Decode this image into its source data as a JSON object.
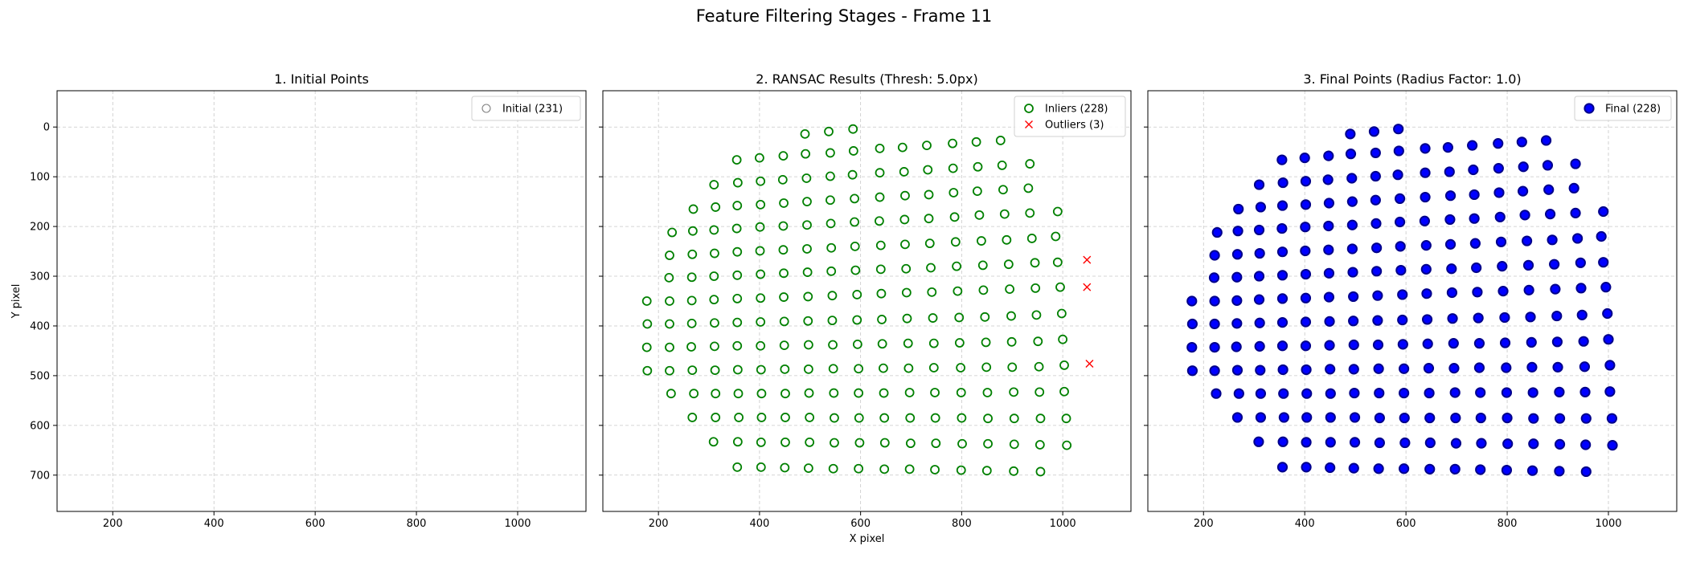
{
  "figure": {
    "title": "Feature Filtering Stages - Frame 11"
  },
  "chart_data": [
    {
      "type": "scatter",
      "title": "1. Initial Points",
      "xlabel": "",
      "ylabel": "Y pixel",
      "xlim": [
        90,
        1135
      ],
      "ylim": [
        773,
        -73
      ],
      "y_inverted": true,
      "xticks": [
        200,
        400,
        600,
        800,
        1000
      ],
      "yticks": [
        0,
        100,
        200,
        300,
        400,
        500,
        600,
        700
      ],
      "grid": true,
      "legend_position": "upper right",
      "series": [
        {
          "name": "Initial (231)",
          "marker": "hollow-circle",
          "color": "#808080",
          "group": "all"
        }
      ]
    },
    {
      "type": "scatter",
      "title": "2. RANSAC Results (Thresh: 5.0px)",
      "xlabel": "X pixel",
      "ylabel": "",
      "xlim": [
        90,
        1135
      ],
      "ylim": [
        773,
        -73
      ],
      "y_inverted": true,
      "xticks": [
        200,
        400,
        600,
        800,
        1000
      ],
      "yticks": [
        0,
        100,
        200,
        300,
        400,
        500,
        600,
        700
      ],
      "grid": true,
      "legend_position": "upper right",
      "series": [
        {
          "name": "Inliers (228)",
          "marker": "hollow-circle",
          "color": "#008000",
          "group": "inliers"
        },
        {
          "name": "Outliers (3)",
          "marker": "x",
          "color": "#ff0000",
          "group": "outliers"
        }
      ]
    },
    {
      "type": "scatter",
      "title": "3. Final Points (Radius Factor: 1.0)",
      "xlabel": "",
      "ylabel": "",
      "xlim": [
        90,
        1135
      ],
      "ylim": [
        773,
        -73
      ],
      "y_inverted": true,
      "xticks": [
        200,
        400,
        600,
        800,
        1000
      ],
      "yticks": [
        0,
        100,
        200,
        300,
        400,
        500,
        600,
        700
      ],
      "grid": true,
      "legend_position": "upper right",
      "series": [
        {
          "name": "Final (228)",
          "marker": "filled-circle",
          "color": "#0000ff",
          "edge": "#00008b",
          "group": "inliers"
        }
      ]
    }
  ],
  "points": {
    "inliers": [
      [
        490,
        14
      ],
      [
        537,
        9
      ],
      [
        585,
        4
      ],
      [
        355,
        66
      ],
      [
        400,
        62
      ],
      [
        447,
        58
      ],
      [
        491,
        54
      ],
      [
        540,
        52
      ],
      [
        586,
        48
      ],
      [
        638,
        43
      ],
      [
        683,
        41
      ],
      [
        731,
        37
      ],
      [
        782,
        33
      ],
      [
        829,
        30
      ],
      [
        877,
        27
      ],
      [
        310,
        116
      ],
      [
        357,
        112
      ],
      [
        402,
        109
      ],
      [
        446,
        106
      ],
      [
        493,
        103
      ],
      [
        540,
        99
      ],
      [
        584,
        96
      ],
      [
        638,
        92
      ],
      [
        686,
        90
      ],
      [
        733,
        86
      ],
      [
        783,
        83
      ],
      [
        832,
        80
      ],
      [
        880,
        77
      ],
      [
        935,
        74
      ],
      [
        269,
        165
      ],
      [
        313,
        161
      ],
      [
        356,
        158
      ],
      [
        402,
        156
      ],
      [
        448,
        153
      ],
      [
        494,
        150
      ],
      [
        540,
        147
      ],
      [
        588,
        144
      ],
      [
        638,
        141
      ],
      [
        688,
        138
      ],
      [
        735,
        136
      ],
      [
        784,
        132
      ],
      [
        831,
        129
      ],
      [
        882,
        126
      ],
      [
        932,
        123
      ],
      [
        990,
        170
      ],
      [
        227,
        212
      ],
      [
        268,
        209
      ],
      [
        310,
        207
      ],
      [
        355,
        204
      ],
      [
        401,
        201
      ],
      [
        447,
        199
      ],
      [
        494,
        197
      ],
      [
        541,
        194
      ],
      [
        588,
        191
      ],
      [
        637,
        189
      ],
      [
        687,
        186
      ],
      [
        735,
        184
      ],
      [
        786,
        181
      ],
      [
        835,
        177
      ],
      [
        885,
        175
      ],
      [
        935,
        173
      ],
      [
        986,
        220
      ],
      [
        222,
        258
      ],
      [
        267,
        256
      ],
      [
        311,
        254
      ],
      [
        356,
        251
      ],
      [
        401,
        249
      ],
      [
        447,
        247
      ],
      [
        494,
        245
      ],
      [
        542,
        243
      ],
      [
        589,
        240
      ],
      [
        640,
        238
      ],
      [
        688,
        236
      ],
      [
        737,
        234
      ],
      [
        788,
        231
      ],
      [
        839,
        229
      ],
      [
        889,
        227
      ],
      [
        939,
        224
      ],
      [
        990,
        272
      ],
      [
        221,
        303
      ],
      [
        266,
        302
      ],
      [
        310,
        300
      ],
      [
        356,
        298
      ],
      [
        402,
        296
      ],
      [
        448,
        294
      ],
      [
        495,
        292
      ],
      [
        542,
        290
      ],
      [
        590,
        288
      ],
      [
        640,
        286
      ],
      [
        690,
        285
      ],
      [
        739,
        283
      ],
      [
        790,
        280
      ],
      [
        842,
        278
      ],
      [
        893,
        276
      ],
      [
        945,
        273
      ],
      [
        177,
        350
      ],
      [
        222,
        350
      ],
      [
        266,
        349
      ],
      [
        310,
        347
      ],
      [
        356,
        345
      ],
      [
        402,
        344
      ],
      [
        448,
        342
      ],
      [
        496,
        341
      ],
      [
        544,
        339
      ],
      [
        593,
        337
      ],
      [
        641,
        335
      ],
      [
        691,
        333
      ],
      [
        741,
        332
      ],
      [
        792,
        330
      ],
      [
        843,
        328
      ],
      [
        895,
        326
      ],
      [
        946,
        324
      ],
      [
        995,
        322
      ],
      [
        178,
        396
      ],
      [
        222,
        396
      ],
      [
        266,
        395
      ],
      [
        311,
        394
      ],
      [
        356,
        393
      ],
      [
        402,
        392
      ],
      [
        449,
        391
      ],
      [
        496,
        390
      ],
      [
        544,
        389
      ],
      [
        593,
        388
      ],
      [
        642,
        387
      ],
      [
        692,
        385
      ],
      [
        743,
        384
      ],
      [
        795,
        383
      ],
      [
        846,
        382
      ],
      [
        898,
        380
      ],
      [
        948,
        378
      ],
      [
        998,
        375
      ],
      [
        177,
        443
      ],
      [
        222,
        443
      ],
      [
        265,
        442
      ],
      [
        311,
        441
      ],
      [
        356,
        440
      ],
      [
        402,
        440
      ],
      [
        449,
        439
      ],
      [
        497,
        438
      ],
      [
        545,
        438
      ],
      [
        594,
        437
      ],
      [
        643,
        436
      ],
      [
        694,
        435
      ],
      [
        745,
        435
      ],
      [
        796,
        434
      ],
      [
        848,
        433
      ],
      [
        899,
        432
      ],
      [
        951,
        431
      ],
      [
        1000,
        427
      ],
      [
        178,
        490
      ],
      [
        222,
        490
      ],
      [
        267,
        489
      ],
      [
        312,
        489
      ],
      [
        357,
        488
      ],
      [
        403,
        488
      ],
      [
        450,
        487
      ],
      [
        497,
        487
      ],
      [
        546,
        486
      ],
      [
        596,
        486
      ],
      [
        645,
        485
      ],
      [
        695,
        485
      ],
      [
        745,
        484
      ],
      [
        798,
        484
      ],
      [
        849,
        483
      ],
      [
        900,
        483
      ],
      [
        953,
        482
      ],
      [
        1003,
        479
      ],
      [
        225,
        536
      ],
      [
        270,
        536
      ],
      [
        313,
        536
      ],
      [
        358,
        536
      ],
      [
        404,
        536
      ],
      [
        451,
        536
      ],
      [
        498,
        535
      ],
      [
        547,
        535
      ],
      [
        596,
        535
      ],
      [
        646,
        535
      ],
      [
        697,
        534
      ],
      [
        747,
        534
      ],
      [
        799,
        534
      ],
      [
        851,
        534
      ],
      [
        903,
        533
      ],
      [
        954,
        533
      ],
      [
        1003,
        532
      ],
      [
        267,
        584
      ],
      [
        313,
        584
      ],
      [
        359,
        584
      ],
      [
        404,
        584
      ],
      [
        451,
        584
      ],
      [
        499,
        584
      ],
      [
        548,
        585
      ],
      [
        597,
        585
      ],
      [
        647,
        585
      ],
      [
        698,
        585
      ],
      [
        748,
        585
      ],
      [
        800,
        585
      ],
      [
        852,
        586
      ],
      [
        904,
        586
      ],
      [
        956,
        586
      ],
      [
        1007,
        586
      ],
      [
        309,
        633
      ],
      [
        357,
        633
      ],
      [
        403,
        634
      ],
      [
        451,
        634
      ],
      [
        499,
        634
      ],
      [
        548,
        635
      ],
      [
        598,
        635
      ],
      [
        648,
        635
      ],
      [
        699,
        636
      ],
      [
        749,
        636
      ],
      [
        801,
        637
      ],
      [
        852,
        637
      ],
      [
        904,
        638
      ],
      [
        955,
        639
      ],
      [
        1008,
        640
      ],
      [
        356,
        684
      ],
      [
        403,
        684
      ],
      [
        450,
        685
      ],
      [
        497,
        686
      ],
      [
        546,
        687
      ],
      [
        596,
        687
      ],
      [
        647,
        688
      ],
      [
        697,
        688
      ],
      [
        747,
        689
      ],
      [
        799,
        690
      ],
      [
        850,
        691
      ],
      [
        903,
        692
      ],
      [
        956,
        693
      ]
    ],
    "outliers": [
      [
        1048,
        267
      ],
      [
        1048,
        322
      ],
      [
        1053,
        476
      ]
    ]
  }
}
